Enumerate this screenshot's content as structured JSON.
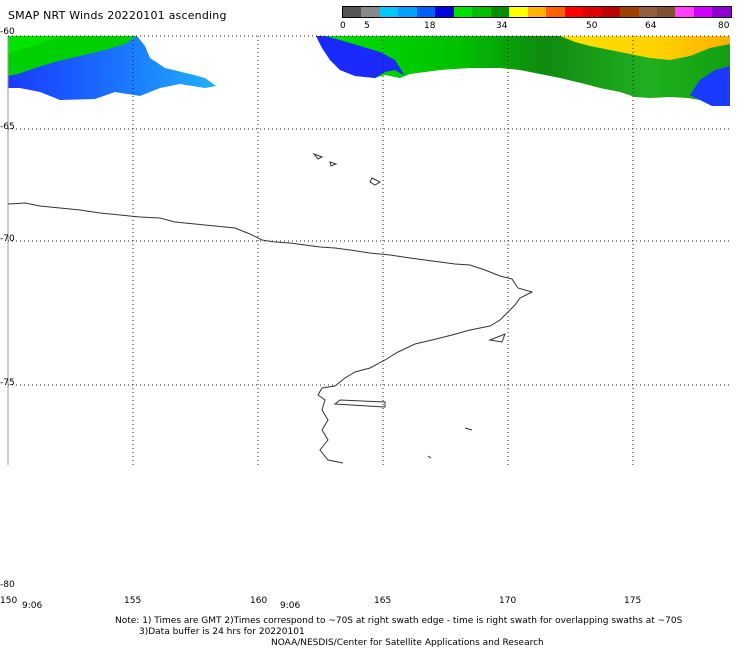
{
  "title": "SMAP NRT Winds 20220101 ascending",
  "colorbar": {
    "labels": [
      "0",
      "5",
      "18",
      "34",
      "50",
      "64",
      "80"
    ],
    "colors": [
      "#555555",
      "#888888",
      "#00c8ff",
      "#00a0ff",
      "#0060ff",
      "#0000e0",
      "#00e000",
      "#00c000",
      "#009000",
      "#ffff00",
      "#ffb000",
      "#ff6000",
      "#ff0000",
      "#e00000",
      "#c00000",
      "#a04000",
      "#906040",
      "#805030",
      "#ff40ff",
      "#d000ff",
      "#9000d0"
    ]
  },
  "latitude_labels": [
    "-60",
    "-65",
    "-70",
    "-75",
    "-80"
  ],
  "longitude_labels": [
    "150",
    "155",
    "160",
    "165",
    "170",
    "175"
  ],
  "time_labels": [
    "9:06",
    "9:06"
  ],
  "note": {
    "line1": "Note: 1) Times are GMT 2)Times correspond to ~70S at right swath edge - time is right swath for overlapping swaths at ~70S",
    "line2": "3)Data buffer is 24 hrs for 20220101",
    "line3": "NOAA/NESDIS/Center for Satellite Applications and Research"
  },
  "wind_colors": {
    "blue_dark": "#0a2aff",
    "blue_light": "#1aa8ff",
    "green": "#00d000",
    "green_dark": "#109010",
    "yellow": "#ffe000",
    "orange": "#ffb000"
  }
}
